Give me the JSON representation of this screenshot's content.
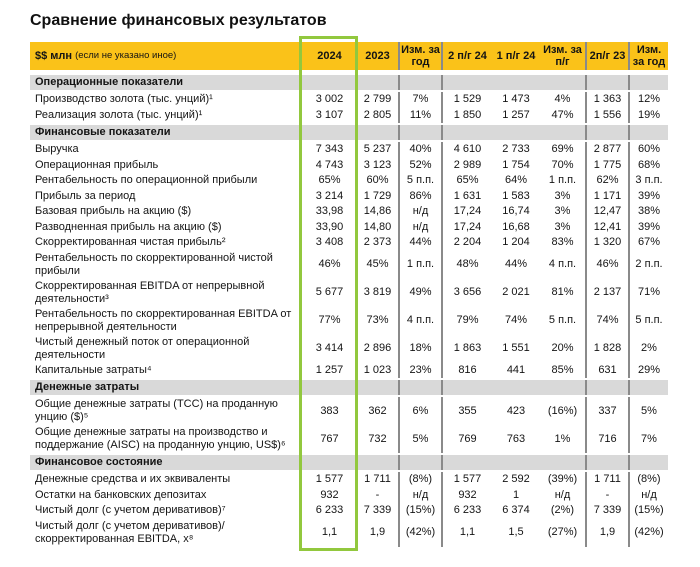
{
  "title": "Сравнение финансовых результатов",
  "table": {
    "unit_label": "$$ млн",
    "unit_note": "(если не указано иное)",
    "header_bg_color": "#FAC219",
    "section_bg_color": "#D9D9D9",
    "highlight_box_color": "#92C83E",
    "columns": [
      "2024",
      "2023",
      "Изм. за год",
      "2 п/г 24",
      "1 п/г 24",
      "Изм. за п/г",
      "2п/г 23",
      "Изм. за год"
    ],
    "column_keys": [
      "2024",
      "2023",
      "chg-yoy",
      "2h-24",
      "1h-24",
      "chg-hoh",
      "2h-23",
      "chg-yoy-half"
    ],
    "rows": [
      {
        "type": "section",
        "label": "Операционные показатели"
      },
      {
        "type": "data",
        "label": "Производство золота (тыс. унций)¹",
        "values": [
          "3 002",
          "2 799",
          "7%",
          "1 529",
          "1 473",
          "4%",
          "1 363",
          "12%"
        ]
      },
      {
        "type": "data",
        "label": "Реализация золота (тыс. унций)¹",
        "values": [
          "3 107",
          "2 805",
          "11%",
          "1 850",
          "1 257",
          "47%",
          "1 556",
          "19%"
        ]
      },
      {
        "type": "section",
        "label": "Финансовые показатели"
      },
      {
        "type": "data",
        "label": "Выручка",
        "values": [
          "7 343",
          "5 237",
          "40%",
          "4 610",
          "2 733",
          "69%",
          "2 877",
          "60%"
        ]
      },
      {
        "type": "data",
        "label": "Операционная прибыль",
        "values": [
          "4 743",
          "3 123",
          "52%",
          "2 989",
          "1 754",
          "70%",
          "1 775",
          "68%"
        ]
      },
      {
        "type": "data",
        "label": "Рентабельность по операционной прибыли",
        "values": [
          "65%",
          "60%",
          "5 п.п.",
          "65%",
          "64%",
          "1 п.п.",
          "62%",
          "3 п.п."
        ]
      },
      {
        "type": "data",
        "label": "Прибыль за период",
        "values": [
          "3 214",
          "1 729",
          "86%",
          "1 631",
          "1 583",
          "3%",
          "1 171",
          "39%"
        ]
      },
      {
        "type": "data",
        "label": "Базовая прибыль на акцию ($)",
        "values": [
          "33,98",
          "14,86",
          "н/д",
          "17,24",
          "16,74",
          "3%",
          "12,47",
          "38%"
        ]
      },
      {
        "type": "data",
        "label": "Разводненная прибыль на акцию ($)",
        "values": [
          "33,90",
          "14,80",
          "н/д",
          "17,24",
          "16,68",
          "3%",
          "12,41",
          "39%"
        ]
      },
      {
        "type": "data",
        "label": "Скорректированная чистая прибыль²",
        "values": [
          "3 408",
          "2 373",
          "44%",
          "2 204",
          "1 204",
          "83%",
          "1 320",
          "67%"
        ]
      },
      {
        "type": "data",
        "label": "Рентабельность по скорректированной чистой прибыли",
        "values": [
          "46%",
          "45%",
          "1 п.п.",
          "48%",
          "44%",
          "4 п.п.",
          "46%",
          "2 п.п."
        ]
      },
      {
        "type": "data",
        "label": "Скорректированная EBITDA от непрерывной деятельности³",
        "values": [
          "5 677",
          "3 819",
          "49%",
          "3 656",
          "2 021",
          "81%",
          "2 137",
          "71%"
        ]
      },
      {
        "type": "data",
        "label": "Рентабельность по скорректированная EBITDA от непрерывной деятельности",
        "values": [
          "77%",
          "73%",
          "4 п.п.",
          "79%",
          "74%",
          "5 п.п.",
          "74%",
          "5 п.п."
        ]
      },
      {
        "type": "data",
        "label": "Чистый денежный поток от операционной деятельности",
        "values": [
          "3 414",
          "2 896",
          "18%",
          "1 863",
          "1 551",
          "20%",
          "1 828",
          "2%"
        ]
      },
      {
        "type": "data",
        "label": "Капитальные затраты⁴",
        "values": [
          "1 257",
          "1 023",
          "23%",
          "816",
          "441",
          "85%",
          "631",
          "29%"
        ]
      },
      {
        "type": "section",
        "label": "Денежные затраты"
      },
      {
        "type": "data",
        "label": "Общие денежные затраты (TCC) на проданную унцию ($)⁵",
        "values": [
          "383",
          "362",
          "6%",
          "355",
          "423",
          "(16%)",
          "337",
          "5%"
        ]
      },
      {
        "type": "data",
        "label": "Общие денежные затраты на производство и поддержание (AISC) на проданную унцию, US$)⁶",
        "values": [
          "767",
          "732",
          "5%",
          "769",
          "763",
          "1%",
          "716",
          "7%"
        ]
      },
      {
        "type": "section",
        "label": "Финансовое состояние"
      },
      {
        "type": "data",
        "label": "Денежные средства и их эквиваленты",
        "values": [
          "1 577",
          "1 711",
          "(8%)",
          "1 577",
          "2 592",
          "(39%)",
          "1 711",
          "(8%)"
        ]
      },
      {
        "type": "data",
        "label": "Остатки на банковских депозитах",
        "values": [
          "932",
          "-",
          "н/д",
          "932",
          "1",
          "н/д",
          "-",
          "н/д"
        ]
      },
      {
        "type": "data",
        "label": "Чистый долг (с учетом деривативов)⁷",
        "values": [
          "6 233",
          "7 339",
          "(15%)",
          "6 233",
          "6 374",
          "(2%)",
          "7 339",
          "(15%)"
        ]
      },
      {
        "type": "data",
        "label": "Чистый долг (с учетом деривативов)/скорректированная EBITDA, x⁸",
        "values": [
          "1,1",
          "1,9",
          "(42%)",
          "1,1",
          "1,5",
          "(27%)",
          "1,9",
          "(42%)"
        ]
      }
    ]
  }
}
